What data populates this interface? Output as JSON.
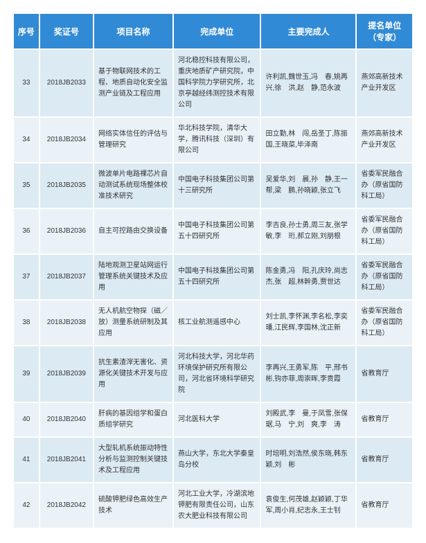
{
  "header": {
    "seq": "序号",
    "cert": "奖证号",
    "name": "项目名称",
    "unit": "完成单位",
    "persons": "主要完成人",
    "nominator": "提名单位（专家）"
  },
  "rows": [
    {
      "seq": "33",
      "cert": "2018JB2033",
      "name": "基于物联网技术的工程、地质自动化安全监测产业链及工程应用",
      "unit": "河北稳控科技有限公司，重庆地质矿产研究院，中国科学院力学研究所，北京亭越经纬测控技术有限公司",
      "persons": "许利凯,魏世玉,冯　春,姚再兴,徐　洪,赵　静,范永波",
      "nominator": "燕郊高新技术产业开发区"
    },
    {
      "seq": "34",
      "cert": "2018JB2034",
      "name": "网络实体信任的评估与管理研究",
      "unit": "华北科技学院，清华大学，腾讯科技（深圳）有限公司",
      "persons": "田立勤,林　闯,岳圣丁,陈振国,王晓菜,毕泽南",
      "nominator": "燕郊高新技术产业开发区"
    },
    {
      "seq": "35",
      "cert": "2018JB2035",
      "name": "微波单片电路裸芯片自动测试系统现场整体校准技术研究",
      "unit": "中国电子科技集团公司第十三研究所",
      "persons": "吴爱华,刘　晨,孙　静,王一帮,梁　鹏,孙晓颖,张立飞",
      "nominator": "省委军民融合办（原省国防科工局）"
    },
    {
      "seq": "36",
      "cert": "2018JB2036",
      "name": "自主可控路由交换设备",
      "unit": "中国电子科技集团公司第五十四研究所",
      "persons": "李吉良,孙士勇,周三友,张学敏,李　珩,郝立刚,刘朋根",
      "nominator": "省委军民融合办（原省国防科工局）"
    },
    {
      "seq": "37",
      "cert": "2018JB2037",
      "name": "陆地观测卫星站网运行管理系统关键技术及应用",
      "unit": "中国电子科技集团公司第五十四研究所",
      "persons": "陈金勇,冯　阳,孔庆玲,尚志杰,张　超,林幹勇,贾世达",
      "nominator": "省委军民融合办（原省国防科工局）"
    },
    {
      "seq": "38",
      "cert": "2018JB2038",
      "name": "无人机航空物探（磁／放）测量系统研制及其应用",
      "unit": "核工业航测遥感中心",
      "persons": "刘士凯,李怀渊,李名松,李奕璠,江民辉,李国林,沈正新",
      "nominator": "省委军民融合办（原省国防科工局）"
    },
    {
      "seq": "39",
      "cert": "2018JB2039",
      "name": "抗生素渣滓无害化、资源化关键技术开发与应用",
      "unit": "河北科技大学，河北华药环境保护研究所有限公司，河北省环境科学研究院",
      "persons": "李再兴,王勇军,陈　平,邢书彬,钩亦菲,周崇晖,李贵霞",
      "nominator": "省教育厅"
    },
    {
      "seq": "40",
      "cert": "2018JB2040",
      "name": "肝病的基因组学和蛋白质组学研究",
      "unit": "河北医科大学",
      "persons": "刘殿武,李　曼,于凤雪,张保琚,马　宁,刘　爽,李　涛",
      "nominator": "省教育厅"
    },
    {
      "seq": "41",
      "cert": "2018JB2041",
      "name": "大型轧机系统振动特性分析与监测控制关键技术及工程应用",
      "unit": "燕山大学，东北大学秦皇岛分校",
      "persons": "时培明,刘浩然,侯东晓,韩东颖,刘　彬",
      "nominator": "省教育厅"
    },
    {
      "seq": "42",
      "cert": "2018JB2042",
      "name": "硫酸钾肥绿色高效生产技术",
      "unit": "河北工业大学，冷湖滨地钾肥有限责任公司，山东农大肥业科技有限公司",
      "persons": "袁俊生,何茂雄,赵颖颖,丁华军,周小肖,纪志永,王士钊",
      "nominator": "省教育厅"
    }
  ]
}
